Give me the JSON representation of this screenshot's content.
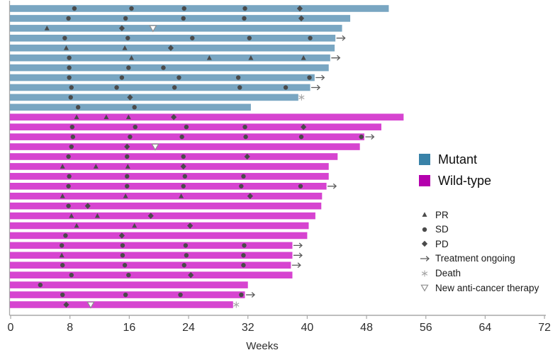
{
  "chart_data": {
    "type": "bar",
    "subtype": "swimmer-plot",
    "title": "",
    "xlabel": "Weeks",
    "xlim": [
      0,
      72
    ],
    "x_ticks": [
      0,
      8,
      16,
      24,
      32,
      40,
      48,
      56,
      64,
      72
    ],
    "grid": false,
    "legend_position": "right",
    "groups": [
      {
        "label": "Mutant",
        "swatch_color": "#3982a8",
        "bar_color": "#79a6c2"
      },
      {
        "label": "Wild-type",
        "swatch_color": "#b400ad",
        "bar_color": "#d644d0"
      }
    ],
    "marker_legend": [
      {
        "type": "pr",
        "label": "PR",
        "shape": "filled up-triangle"
      },
      {
        "type": "sd",
        "label": "SD",
        "shape": "filled circle"
      },
      {
        "type": "pd",
        "label": "PD",
        "shape": "filled diamond"
      },
      {
        "type": "arrow",
        "label": "Treatment ongoing",
        "shape": "right arrow"
      },
      {
        "type": "death",
        "label": "Death",
        "shape": "asterisk"
      },
      {
        "type": "new",
        "label": "New anti-cancer therapy",
        "shape": "open down-triangle"
      }
    ],
    "bars": [
      {
        "group": "Mutant",
        "length_weeks": 51.0,
        "end_marker": null,
        "events": [
          [
            8.6,
            "sd"
          ],
          [
            16.3,
            "sd"
          ],
          [
            23.4,
            "sd"
          ],
          [
            31.6,
            "sd"
          ],
          [
            39.0,
            "pd"
          ]
        ]
      },
      {
        "group": "Mutant",
        "length_weeks": 45.8,
        "end_marker": null,
        "events": [
          [
            7.8,
            "sd"
          ],
          [
            15.5,
            "sd"
          ],
          [
            23.3,
            "sd"
          ],
          [
            31.5,
            "sd"
          ],
          [
            39.2,
            "pd"
          ]
        ]
      },
      {
        "group": "Mutant",
        "length_weeks": 44.7,
        "end_marker": null,
        "events": [
          [
            4.9,
            "pr"
          ],
          [
            15.0,
            "pd"
          ],
          [
            19.2,
            "new"
          ]
        ]
      },
      {
        "group": "Mutant",
        "length_weeks": 43.8,
        "end_marker": "arrow",
        "events": [
          [
            7.3,
            "sd"
          ],
          [
            15.8,
            "sd"
          ],
          [
            24.5,
            "sd"
          ],
          [
            32.2,
            "sd"
          ],
          [
            40.4,
            "sd"
          ]
        ]
      },
      {
        "group": "Mutant",
        "length_weeks": 43.7,
        "end_marker": null,
        "events": [
          [
            7.5,
            "pr"
          ],
          [
            15.4,
            "pr"
          ],
          [
            21.6,
            "pd"
          ]
        ]
      },
      {
        "group": "Mutant",
        "length_weeks": 43.1,
        "end_marker": "arrow",
        "events": [
          [
            7.9,
            "sd"
          ],
          [
            16.3,
            "pr"
          ],
          [
            26.8,
            "pr"
          ],
          [
            32.4,
            "pr"
          ],
          [
            39.5,
            "pr"
          ]
        ]
      },
      {
        "group": "Mutant",
        "length_weeks": 42.9,
        "end_marker": null,
        "events": [
          [
            7.9,
            "sd"
          ],
          [
            15.9,
            "sd"
          ],
          [
            20.6,
            "sd"
          ]
        ]
      },
      {
        "group": "Mutant",
        "length_weeks": 41.0,
        "end_marker": "arrow",
        "events": [
          [
            7.9,
            "sd"
          ],
          [
            15.0,
            "sd"
          ],
          [
            22.7,
            "sd"
          ],
          [
            30.7,
            "sd"
          ],
          [
            40.3,
            "sd"
          ]
        ]
      },
      {
        "group": "Mutant",
        "length_weeks": 40.4,
        "end_marker": "arrow",
        "events": [
          [
            8.2,
            "sd"
          ],
          [
            14.3,
            "sd"
          ],
          [
            22.1,
            "sd"
          ],
          [
            30.9,
            "sd"
          ],
          [
            37.1,
            "sd"
          ]
        ]
      },
      {
        "group": "Mutant",
        "length_weeks": 38.8,
        "end_marker": "death",
        "events": [
          [
            8.1,
            "sd"
          ],
          [
            16.1,
            "pd"
          ]
        ]
      },
      {
        "group": "Mutant",
        "length_weeks": 32.4,
        "end_marker": null,
        "events": [
          [
            9.1,
            "sd"
          ],
          [
            16.7,
            "sd"
          ]
        ]
      },
      {
        "group": "Wild-type",
        "length_weeks": 53.0,
        "end_marker": null,
        "events": [
          [
            8.9,
            "pr"
          ],
          [
            12.9,
            "pr"
          ],
          [
            15.9,
            "pr"
          ],
          [
            22.0,
            "pd"
          ]
        ]
      },
      {
        "group": "Wild-type",
        "length_weeks": 50.0,
        "end_marker": null,
        "events": [
          [
            8.3,
            "sd"
          ],
          [
            16.8,
            "sd"
          ],
          [
            23.7,
            "sd"
          ],
          [
            31.6,
            "sd"
          ],
          [
            39.5,
            "pd"
          ]
        ]
      },
      {
        "group": "Wild-type",
        "length_weeks": 47.7,
        "end_marker": "arrow",
        "events": [
          [
            8.4,
            "sd"
          ],
          [
            16.1,
            "sd"
          ],
          [
            23.1,
            "sd"
          ],
          [
            31.7,
            "sd"
          ],
          [
            39.2,
            "sd"
          ],
          [
            47.3,
            "sd"
          ]
        ]
      },
      {
        "group": "Wild-type",
        "length_weeks": 47.1,
        "end_marker": null,
        "events": [
          [
            8.2,
            "sd"
          ],
          [
            15.7,
            "pd"
          ],
          [
            19.5,
            "new"
          ]
        ]
      },
      {
        "group": "Wild-type",
        "length_weeks": 44.1,
        "end_marker": null,
        "events": [
          [
            7.8,
            "sd"
          ],
          [
            15.7,
            "sd"
          ],
          [
            23.3,
            "sd"
          ],
          [
            31.9,
            "pd"
          ]
        ]
      },
      {
        "group": "Wild-type",
        "length_weeks": 42.9,
        "end_marker": null,
        "events": [
          [
            7.0,
            "pr"
          ],
          [
            11.5,
            "pr"
          ],
          [
            15.8,
            "pr"
          ],
          [
            23.3,
            "pd"
          ]
        ]
      },
      {
        "group": "Wild-type",
        "length_weeks": 42.9,
        "end_marker": null,
        "events": [
          [
            7.9,
            "sd"
          ],
          [
            15.7,
            "sd"
          ],
          [
            23.5,
            "sd"
          ],
          [
            31.4,
            "sd"
          ]
        ]
      },
      {
        "group": "Wild-type",
        "length_weeks": 42.6,
        "end_marker": "arrow",
        "events": [
          [
            7.8,
            "sd"
          ],
          [
            15.7,
            "sd"
          ],
          [
            23.3,
            "sd"
          ],
          [
            31.1,
            "sd"
          ],
          [
            39.1,
            "sd"
          ]
        ]
      },
      {
        "group": "Wild-type",
        "length_weeks": 42.0,
        "end_marker": null,
        "events": [
          [
            7.0,
            "pr"
          ],
          [
            15.5,
            "pr"
          ],
          [
            23.0,
            "pr"
          ],
          [
            32.3,
            "pd"
          ]
        ]
      },
      {
        "group": "Wild-type",
        "length_weeks": 41.9,
        "end_marker": null,
        "events": [
          [
            7.8,
            "sd"
          ],
          [
            10.4,
            "pd"
          ]
        ]
      },
      {
        "group": "Wild-type",
        "length_weeks": 41.1,
        "end_marker": null,
        "events": [
          [
            8.2,
            "pr"
          ],
          [
            11.7,
            "pr"
          ],
          [
            18.9,
            "pd"
          ]
        ]
      },
      {
        "group": "Wild-type",
        "length_weeks": 40.2,
        "end_marker": null,
        "events": [
          [
            8.9,
            "pr"
          ],
          [
            16.7,
            "pr"
          ],
          [
            24.2,
            "pd"
          ]
        ]
      },
      {
        "group": "Wild-type",
        "length_weeks": 40.0,
        "end_marker": null,
        "events": [
          [
            7.4,
            "sd"
          ],
          [
            15.0,
            "pd"
          ]
        ]
      },
      {
        "group": "Wild-type",
        "length_weeks": 38.0,
        "end_marker": "arrow",
        "events": [
          [
            6.9,
            "sd"
          ],
          [
            15.1,
            "sd"
          ],
          [
            23.6,
            "sd"
          ],
          [
            31.5,
            "sd"
          ]
        ]
      },
      {
        "group": "Wild-type",
        "length_weeks": 38.0,
        "end_marker": "arrow",
        "events": [
          [
            6.9,
            "pr"
          ],
          [
            15.1,
            "sd"
          ],
          [
            23.7,
            "sd"
          ],
          [
            31.4,
            "sd"
          ]
        ]
      },
      {
        "group": "Wild-type",
        "length_weeks": 37.8,
        "end_marker": "arrow",
        "events": [
          [
            7.0,
            "sd"
          ],
          [
            15.4,
            "sd"
          ],
          [
            23.4,
            "sd"
          ],
          [
            31.4,
            "sd"
          ]
        ]
      },
      {
        "group": "Wild-type",
        "length_weeks": 38.0,
        "end_marker": null,
        "events": [
          [
            8.2,
            "sd"
          ],
          [
            15.9,
            "sd"
          ],
          [
            24.3,
            "pd"
          ]
        ]
      },
      {
        "group": "Wild-type",
        "length_weeks": 32.0,
        "end_marker": null,
        "events": [
          [
            4.0,
            "sd"
          ]
        ]
      },
      {
        "group": "Wild-type",
        "length_weeks": 31.6,
        "end_marker": "arrow",
        "events": [
          [
            7.0,
            "sd"
          ],
          [
            15.5,
            "sd"
          ],
          [
            22.9,
            "sd"
          ],
          [
            31.1,
            "sd"
          ]
        ]
      },
      {
        "group": "Wild-type",
        "length_weeks": 30.0,
        "end_marker": "death",
        "events": [
          [
            7.5,
            "pd"
          ],
          [
            10.8,
            "new"
          ]
        ]
      }
    ]
  },
  "colors": {
    "axis_line": "#a8a8a8",
    "tick_label": "#2e2e2e",
    "event_marker": "#4a4a4a",
    "arrow": "#5c5c5c",
    "death": "#a6a6a6",
    "new_therapy_outline": "#8f8f8f",
    "background": "#ffffff"
  }
}
